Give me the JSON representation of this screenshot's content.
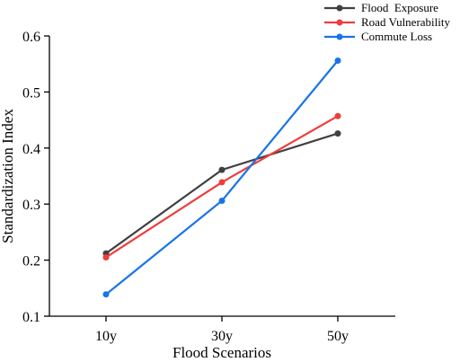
{
  "chart_data": {
    "type": "line",
    "categories": [
      "10y",
      "30y",
      "50y"
    ],
    "xlabel": "Flood Scenarios",
    "ylabel": "Standardization Index",
    "ylim": [
      0.1,
      0.6
    ],
    "yticks": [
      "0.1",
      "0.2",
      "0.3",
      "0.4",
      "0.5",
      "0.6"
    ],
    "grid": false,
    "legend_position": "top-right",
    "series": [
      {
        "name": "Flood  Exposure",
        "color": "#404040",
        "values": [
          0.212,
          0.361,
          0.426
        ]
      },
      {
        "name": "Road Vulnerability",
        "color": "#f03c3c",
        "values": [
          0.205,
          0.339,
          0.457
        ]
      },
      {
        "name": "Commute Loss",
        "color": "#1a73e8",
        "values": [
          0.139,
          0.306,
          0.556
        ]
      }
    ]
  }
}
